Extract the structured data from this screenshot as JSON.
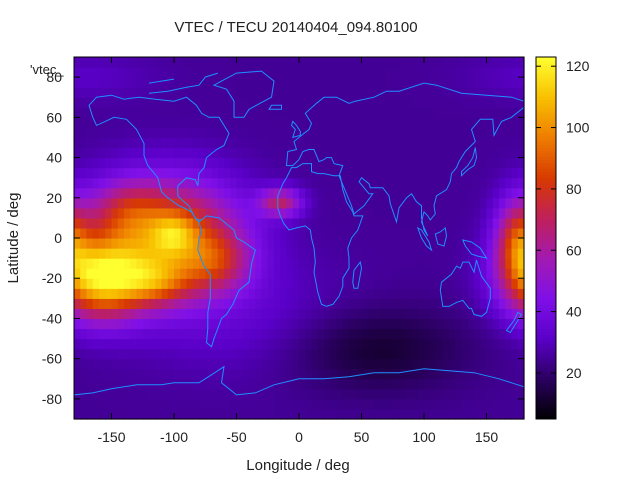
{
  "chart_data": {
    "type": "heatmap",
    "title": "VTEC / TECU 20140404_094.80100",
    "xlabel": "Longitude / deg",
    "ylabel": "Latitude / deg",
    "xlim": [
      -180,
      180
    ],
    "ylim": [
      -90,
      90
    ],
    "x_ticks": [
      -150,
      -100,
      -50,
      0,
      50,
      100,
      150
    ],
    "y_ticks": [
      -80,
      -60,
      -40,
      -20,
      0,
      20,
      40,
      60,
      80
    ],
    "colorbar": {
      "range": [
        5,
        123
      ],
      "ticks": [
        20,
        40,
        60,
        80,
        100,
        120
      ],
      "palette": [
        "#000000",
        "#2a0060",
        "#5a00c8",
        "#7f10e8",
        "#a21ab0",
        "#c0205a",
        "#d83a00",
        "#ee7d00",
        "#f8c000",
        "#ffff30"
      ]
    },
    "legend": {
      "entry": "'vtec_",
      "placement": "top-left"
    },
    "coastline_color": "#1e90ff",
    "grid": false,
    "resolution_deg": 5,
    "background_vtec": 25,
    "features": [
      {
        "lon": -160,
        "lat": -20,
        "sigma_lon": 25,
        "sigma_lat": 14,
        "amp": 80
      },
      {
        "lon": -105,
        "lat": 0,
        "sigma_lon": 40,
        "sigma_lat": 20,
        "amp": 70
      },
      {
        "lon": -115,
        "lat": -22,
        "sigma_lon": 20,
        "sigma_lat": 8,
        "amp": 30
      },
      {
        "lon": -100,
        "lat": 2,
        "sigma_lon": 12,
        "sigma_lat": 7,
        "amp": 22
      },
      {
        "lon": -140,
        "lat": 15,
        "sigma_lon": 20,
        "sigma_lat": 10,
        "amp": 20
      },
      {
        "lon": -65,
        "lat": -12,
        "sigma_lon": 18,
        "sigma_lat": 10,
        "amp": 25
      },
      {
        "lon": -15,
        "lat": 18,
        "sigma_lon": 12,
        "sigma_lat": 5,
        "amp": 40
      },
      {
        "lon": 175,
        "lat": 0,
        "sigma_lon": 12,
        "sigma_lat": 14,
        "amp": 45
      },
      {
        "lon": 60,
        "lat": -55,
        "sigma_lon": 50,
        "sigma_lat": 15,
        "amp": -14
      },
      {
        "lon": -40,
        "lat": -40,
        "sigma_lon": 60,
        "sigma_lat": 20,
        "amp": 8
      },
      {
        "lon": -170,
        "lat": 80,
        "sigma_lon": 40,
        "sigma_lat": 8,
        "amp": 6
      }
    ]
  }
}
